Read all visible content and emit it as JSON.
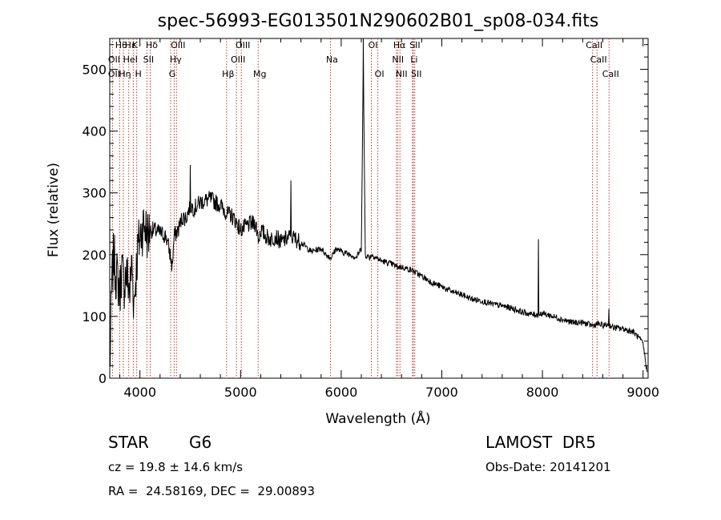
{
  "chart_data": {
    "type": "line",
    "title": "spec-56993-EG013501N290602B01_sp08-034.fits",
    "xlabel": "Wavelength (Å)",
    "ylabel": "Flux (relative)",
    "xlim": [
      3700,
      9050
    ],
    "ylim": [
      0,
      550
    ],
    "xticks": [
      "4000",
      "5000",
      "6000",
      "7000",
      "8000",
      "9000"
    ],
    "yticks": [
      "0",
      "100",
      "200",
      "300",
      "400",
      "500"
    ],
    "grid": false,
    "series": [
      {
        "x": [
          3700,
          3720,
          3740,
          3760,
          3780,
          3800,
          3820,
          3840,
          3860,
          3880,
          3900,
          3920,
          3940,
          3960,
          3980,
          4000,
          4040,
          4080,
          4100,
          4140,
          4200,
          4260,
          4300,
          4320,
          4340,
          4380,
          4420,
          4460,
          4500,
          4540,
          4600,
          4700,
          4800,
          4850,
          4870,
          4900,
          4950,
          5000,
          5050,
          5100,
          5150,
          5180,
          5200,
          5250,
          5300,
          5350,
          5400,
          5450,
          5500,
          5550,
          5600,
          5700,
          5800,
          5850,
          5900,
          5950,
          6000,
          6100,
          6150,
          6200,
          6220,
          6240,
          6280,
          6300,
          6400,
          6500,
          6560,
          6600,
          6700,
          6800,
          6900,
          7000,
          7100,
          7200,
          7300,
          7400,
          7500,
          7600,
          7700,
          7800,
          7900,
          7960,
          8000,
          8100,
          8200,
          8300,
          8400,
          8500,
          8550,
          8600,
          8660,
          8700,
          8800,
          8900,
          8960,
          9000,
          9040
        ],
        "y": [
          10,
          150,
          200,
          170,
          160,
          140,
          180,
          150,
          170,
          160,
          140,
          190,
          120,
          170,
          210,
          230,
          250,
          230,
          240,
          240,
          235,
          230,
          200,
          180,
          230,
          240,
          260,
          260,
          280,
          275,
          285,
          290,
          280,
          270,
          265,
          265,
          255,
          240,
          245,
          250,
          250,
          225,
          240,
          230,
          225,
          230,
          220,
          225,
          230,
          225,
          220,
          205,
          210,
          200,
          195,
          210,
          205,
          200,
          195,
          210,
          510,
          200,
          195,
          200,
          190,
          185,
          180,
          180,
          175,
          165,
          155,
          148,
          140,
          135,
          128,
          125,
          120,
          117,
          113,
          107,
          103,
          103,
          105,
          100,
          95,
          90,
          90,
          85,
          88,
          85,
          87,
          82,
          80,
          75,
          65,
          55,
          10
        ]
      }
    ],
    "spikes": [
      {
        "x": 4500,
        "y": 345
      },
      {
        "x": 5500,
        "y": 320
      },
      {
        "x": 6220,
        "y": 560
      },
      {
        "x": 7960,
        "y": 225
      },
      {
        "x": 8660,
        "y": 112
      }
    ],
    "annotations": [
      {
        "label": "Hθ",
        "x": 3798,
        "row": 0
      },
      {
        "label": "OII",
        "x": 3727,
        "row": 1
      },
      {
        "label": "OII",
        "x": 3727,
        "row": 2
      },
      {
        "label": "Hη",
        "x": 3835,
        "row": 2
      },
      {
        "label": "Hε",
        "x": 3889,
        "row": 0
      },
      {
        "label": "HeI",
        "x": 3889,
        "row": 1
      },
      {
        "label": "K",
        "x": 3934,
        "row": 0
      },
      {
        "label": "H",
        "x": 3968,
        "row": 2
      },
      {
        "label": "Hδ",
        "x": 4102,
        "row": 0
      },
      {
        "label": "SII",
        "x": 4069,
        "row": 1
      },
      {
        "label": "OIII",
        "x": 4363,
        "row": 0
      },
      {
        "label": "Hγ",
        "x": 4340,
        "row": 1
      },
      {
        "label": "G",
        "x": 4305,
        "row": 2
      },
      {
        "label": "Hβ",
        "x": 4861,
        "row": 2
      },
      {
        "label": "OIII",
        "x": 5007,
        "row": 0
      },
      {
        "label": "OIII",
        "x": 4959,
        "row": 1
      },
      {
        "label": "Mg",
        "x": 5175,
        "row": 2
      },
      {
        "label": "Na",
        "x": 5893,
        "row": 1
      },
      {
        "label": "OI",
        "x": 6300,
        "row": 0
      },
      {
        "label": "OI",
        "x": 6364,
        "row": 2
      },
      {
        "label": "Hα",
        "x": 6563,
        "row": 0
      },
      {
        "label": "NII",
        "x": 6548,
        "row": 1
      },
      {
        "label": "NII",
        "x": 6584,
        "row": 2
      },
      {
        "label": "SII",
        "x": 6717,
        "row": 0
      },
      {
        "label": "Li",
        "x": 6708,
        "row": 1
      },
      {
        "label": "SII",
        "x": 6731,
        "row": 2
      },
      {
        "label": "CaII",
        "x": 8498,
        "row": 0
      },
      {
        "label": "CaII",
        "x": 8542,
        "row": 1
      },
      {
        "label": "CaII",
        "x": 8662,
        "row": 2
      }
    ],
    "line_color": "#000000",
    "marker_color": "#c0392b"
  },
  "info": {
    "object_class": "STAR",
    "subclass": "G6",
    "survey": "LAMOST  DR5",
    "cz": "cz = 19.8 ± 14.6 km/s",
    "obs_date": "Obs-Date: 20141201",
    "coords": "RA =  24.58169, DEC =  29.00893"
  }
}
